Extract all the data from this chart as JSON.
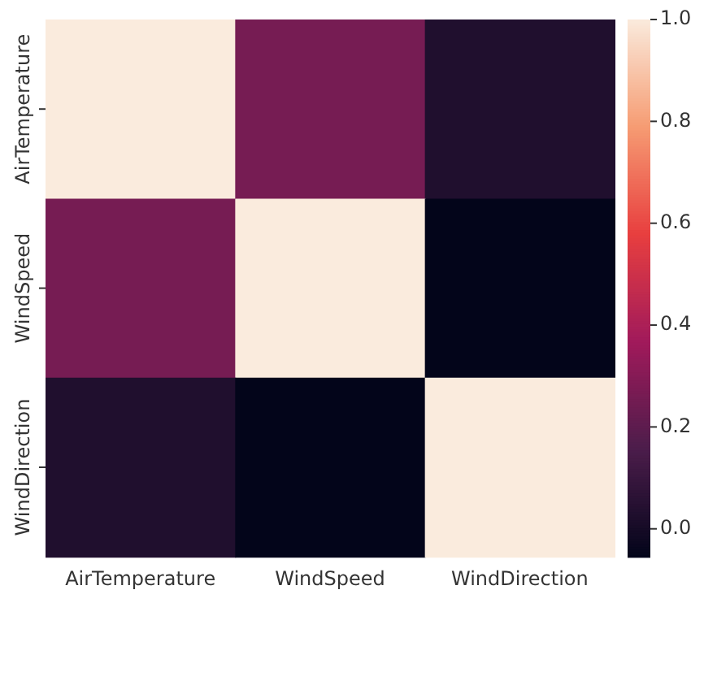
{
  "chart_data": {
    "type": "heatmap",
    "categories": [
      "AirTemperature",
      "WindSpeed",
      "WindDirection"
    ],
    "y_categories": [
      "AirTemperature",
      "WindSpeed",
      "WindDirection"
    ],
    "cells": [
      [
        1.0,
        0.26,
        0.03
      ],
      [
        0.26,
        1.0,
        -0.055
      ],
      [
        0.03,
        -0.055,
        1.0
      ]
    ],
    "clim": [
      -0.055,
      1.0
    ],
    "cticks": [
      {
        "value": -0.0,
        "label": "0.0"
      },
      {
        "value": 0.2,
        "label": "0.2"
      },
      {
        "value": 0.4,
        "label": "0.4"
      },
      {
        "value": 0.6,
        "label": "0.6"
      },
      {
        "value": 0.8,
        "label": "0.8"
      },
      {
        "value": 1.0,
        "label": "1.0"
      }
    ]
  }
}
